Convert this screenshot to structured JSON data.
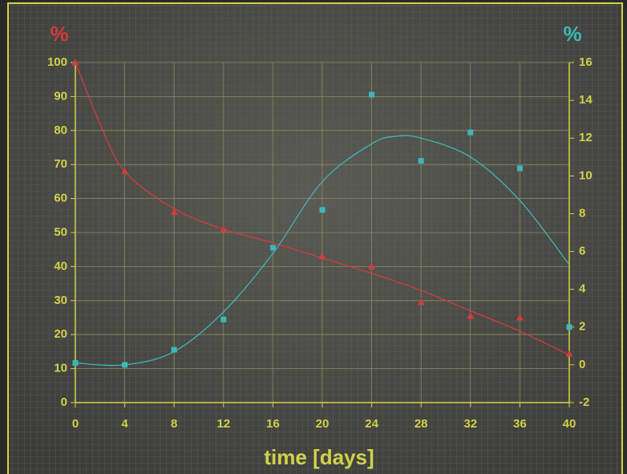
{
  "chart_data": {
    "type": "scatter",
    "xlabel": "time [days]",
    "ylabel": "%",
    "y2label": "%",
    "ylabel_color": "#d23c3c",
    "y2label_color": "#3cb8b8",
    "xlim": [
      0,
      40
    ],
    "xticks": [
      0,
      4,
      8,
      12,
      16,
      20,
      24,
      28,
      32,
      36,
      40
    ],
    "ylim": [
      0,
      100
    ],
    "yticks": [
      0,
      10,
      20,
      30,
      40,
      50,
      60,
      70,
      80,
      90,
      100
    ],
    "y2lim": [
      -2,
      16
    ],
    "y2ticks": [
      -2,
      0,
      2,
      4,
      6,
      8,
      10,
      12,
      14,
      16
    ],
    "grid": true,
    "series": [
      {
        "style": "markers",
        "marker": "triangle",
        "color": "#d23c3c",
        "axis": "y",
        "x": [
          0,
          4,
          8,
          12,
          20,
          24,
          28,
          32,
          36,
          40
        ],
        "values": [
          100,
          68,
          56,
          51,
          43,
          40,
          29.5,
          25.5,
          25,
          14.4
        ]
      },
      {
        "style": "line",
        "color": "#d23c3c",
        "axis": "y",
        "x": [
          0,
          2,
          4,
          8,
          12,
          16,
          20,
          24,
          28,
          32,
          36,
          40
        ],
        "values": [
          100,
          82,
          68,
          57,
          51,
          47,
          42.5,
          38,
          33,
          27,
          21,
          14
        ]
      },
      {
        "style": "markers",
        "marker": "square",
        "color": "#3cb8b8",
        "axis": "y2",
        "x": [
          0,
          4,
          8,
          12,
          16,
          20,
          24,
          28,
          32,
          36,
          40
        ],
        "values": [
          0.1,
          0,
          0.8,
          2.4,
          6.2,
          8.2,
          14.3,
          10.8,
          12.3,
          10.4,
          2
        ]
      },
      {
        "style": "line",
        "color": "#3cb8b8",
        "axis": "y2",
        "x": [
          0,
          4,
          8,
          12,
          16,
          20,
          24,
          26,
          28,
          32,
          36,
          40
        ],
        "values": [
          0.1,
          0,
          0.7,
          2.8,
          5.9,
          9.7,
          11.7,
          12.1,
          12,
          11,
          8.7,
          5.3
        ]
      }
    ]
  }
}
